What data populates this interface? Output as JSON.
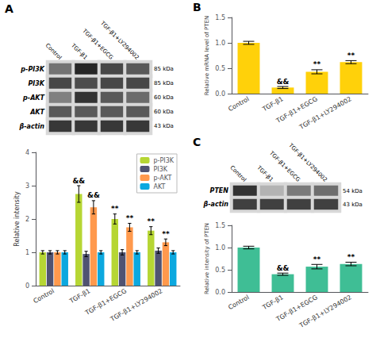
{
  "chart_data": [
    {
      "type": "heatmap",
      "title": "A",
      "categories": [
        "Control",
        "TGF-β1",
        "TGF-β1+EGCG",
        "TGF-β1+LY294002"
      ],
      "y_categories": [
        "p-PI3K",
        "PI3K",
        "p-AKT",
        "AKT",
        "β-actin"
      ],
      "y2_categories": [
        "85 kDa",
        "85 kDa",
        "60 kDa",
        "60 kDa",
        "43 kDa"
      ],
      "values": [
        [
          0.55,
          0.85,
          0.72,
          0.65
        ],
        [
          0.72,
          0.7,
          0.72,
          0.72
        ],
        [
          0.5,
          0.8,
          0.65,
          0.58
        ],
        [
          0.65,
          0.65,
          0.65,
          0.65
        ],
        [
          0.78,
          0.78,
          0.78,
          0.78
        ]
      ],
      "clim": [
        0,
        1
      ]
    },
    {
      "type": "bar",
      "categories": [
        "Control",
        "TGF-β1",
        "TGF-β1+EGCG",
        "TGF-β1+LY294002"
      ],
      "series": [
        {
          "name": "p-PI3K",
          "values": [
            1.0,
            2.75,
            2.0,
            1.65
          ],
          "errors": [
            0.05,
            0.25,
            0.15,
            0.12
          ],
          "annotations": [
            null,
            "&&",
            "**",
            "**"
          ]
        },
        {
          "name": "PI3K",
          "values": [
            1.0,
            0.95,
            1.0,
            1.05
          ],
          "errors": [
            0.05,
            0.08,
            0.08,
            0.08
          ],
          "annotations": [
            null,
            null,
            null,
            null
          ]
        },
        {
          "name": "p-AKT",
          "values": [
            1.0,
            2.35,
            1.75,
            1.3
          ],
          "errors": [
            0.05,
            0.2,
            0.12,
            0.1
          ],
          "annotations": [
            null,
            "&&",
            "**",
            "**"
          ]
        },
        {
          "name": "AKT",
          "values": [
            1.0,
            1.0,
            1.0,
            1.0
          ],
          "errors": [
            0.05,
            0.05,
            0.05,
            0.05
          ],
          "annotations": [
            null,
            null,
            null,
            null
          ]
        }
      ],
      "ylabel": "Relative intensity",
      "ylim": [
        0,
        4
      ],
      "yticks": [
        0,
        1,
        2,
        3,
        4
      ],
      "legend": "upper right",
      "grid": false
    },
    {
      "type": "bar",
      "title": "B",
      "categories": [
        "Control",
        "TGF-β1",
        "TGF-β1+EGCG",
        "TGF-β1+LY294002"
      ],
      "values": [
        1.0,
        0.12,
        0.43,
        0.62
      ],
      "errors": [
        0.03,
        0.02,
        0.04,
        0.03
      ],
      "annotations": [
        null,
        "&&",
        "**",
        "**"
      ],
      "ylabel": "Relative mRNA level of PTEN",
      "ylim": [
        0,
        1.5
      ],
      "yticks": [
        {
          "value": 0,
          "label": "0.0"
        },
        0.5,
        {
          "value": 1,
          "label": "1.0"
        },
        1.5
      ],
      "grid": false
    },
    {
      "type": "heatmap",
      "title": "C",
      "categories": [
        "Control",
        "TGF-β1",
        "TGF-β1+EGCG",
        "TGF-β1+LY294002"
      ],
      "y_categories": [
        "PTEN",
        "β-actin"
      ],
      "y2_categories": [
        "54 kDa",
        "43 kDa"
      ],
      "values": [
        [
          0.8,
          0.3,
          0.52,
          0.57
        ],
        [
          0.75,
          0.75,
          0.75,
          0.75
        ]
      ],
      "clim": [
        0,
        1
      ]
    },
    {
      "type": "bar",
      "categories": [
        "Control",
        "TGF-β1",
        "TGF-β1+EGCG",
        "TGF-β1+LY294002"
      ],
      "values": [
        1.0,
        0.4,
        0.57,
        0.63
      ],
      "errors": [
        0.03,
        0.025,
        0.05,
        0.04
      ],
      "annotations": [
        null,
        "&&",
        "**",
        "**"
      ],
      "ylabel": "Relative intensity of PTEN",
      "ylim": [
        0,
        1.5
      ],
      "yticks": [
        {
          "value": 0,
          "label": "0.0"
        },
        0.5,
        {
          "value": 1,
          "label": "1.0"
        },
        1.5
      ],
      "grid": false
    }
  ]
}
